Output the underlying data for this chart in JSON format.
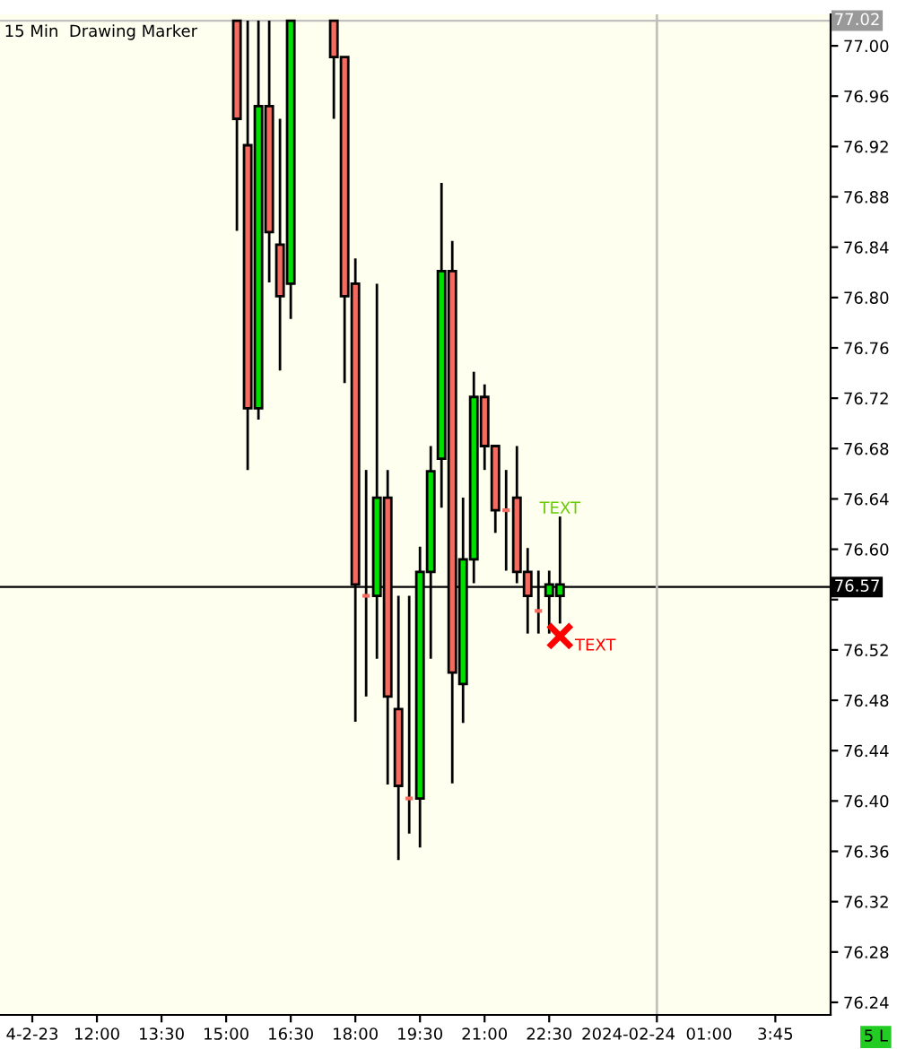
{
  "chart_data": {
    "type": "candlestick",
    "title": "15 Min  Drawing Marker",
    "x": [
      "2024-02-23T15:15",
      "2024-02-23T15:30",
      "2024-02-23T15:45",
      "2024-02-23T16:00",
      "2024-02-23T16:15",
      "2024-02-23T16:30",
      "2024-02-23T17:30",
      "2024-02-23T17:45",
      "2024-02-23T18:00",
      "2024-02-23T18:15",
      "2024-02-23T18:30",
      "2024-02-23T18:45",
      "2024-02-23T19:00",
      "2024-02-23T19:15",
      "2024-02-23T19:30",
      "2024-02-23T19:45",
      "2024-02-23T20:00",
      "2024-02-23T20:15",
      "2024-02-23T20:30",
      "2024-02-23T20:45",
      "2024-02-23T21:00",
      "2024-02-23T21:15",
      "2024-02-23T21:30",
      "2024-02-23T21:45",
      "2024-02-23T22:00",
      "2024-02-23T22:15",
      "2024-02-23T22:30",
      "2024-02-23T22:45"
    ],
    "ohlc": [
      [
        77.02,
        77.02,
        76.853,
        76.942
      ],
      [
        76.921,
        77.02,
        76.663,
        76.712
      ],
      [
        76.712,
        77.02,
        76.703,
        76.952
      ],
      [
        76.952,
        77.02,
        76.812,
        76.852
      ],
      [
        76.842,
        76.942,
        76.742,
        76.801
      ],
      [
        76.811,
        77.02,
        76.783,
        77.02
      ],
      [
        77.02,
        77.02,
        76.942,
        76.991
      ],
      [
        76.991,
        76.991,
        76.732,
        76.801
      ],
      [
        76.811,
        76.831,
        76.463,
        76.572
      ],
      [
        76.563,
        76.663,
        76.483,
        76.563
      ],
      [
        76.563,
        76.811,
        76.513,
        76.641
      ],
      [
        76.641,
        76.663,
        76.413,
        76.483
      ],
      [
        76.473,
        76.563,
        76.353,
        76.412
      ],
      [
        76.402,
        76.563,
        76.374,
        76.402
      ],
      [
        76.402,
        76.602,
        76.363,
        76.582
      ],
      [
        76.582,
        76.682,
        76.513,
        76.662
      ],
      [
        76.672,
        76.891,
        76.633,
        76.821
      ],
      [
        76.821,
        76.845,
        76.414,
        76.502
      ],
      [
        76.493,
        76.641,
        76.462,
        76.592
      ],
      [
        76.592,
        76.741,
        76.573,
        76.721
      ],
      [
        76.721,
        76.731,
        76.663,
        76.682
      ],
      [
        76.682,
        76.682,
        76.613,
        76.631
      ],
      [
        76.631,
        76.663,
        76.583,
        76.631
      ],
      [
        76.641,
        76.682,
        76.573,
        76.582
      ],
      [
        76.582,
        76.601,
        76.533,
        76.563
      ],
      [
        76.551,
        76.583,
        76.533,
        76.551
      ],
      [
        76.563,
        76.583,
        76.533,
        76.572
      ],
      [
        76.563,
        76.626,
        76.541,
        76.572
      ]
    ],
    "colors": [
      "#f46b60",
      "#f46b60",
      "#00e000",
      "#f46b60",
      "#f46b60",
      "#00e000",
      "#f46b60",
      "#f46b60",
      "#f46b60",
      "#f46b60",
      "#00e000",
      "#f46b60",
      "#f46b60",
      "#f46b60",
      "#00e000",
      "#00e000",
      "#00e000",
      "#f46b60",
      "#00e000",
      "#00e000",
      "#f46b60",
      "#f46b60",
      "#f46b60",
      "#f46b60",
      "#f46b60",
      "#f46b60",
      "#00e000",
      "#00e000"
    ],
    "series": [
      {
        "type": "scatter",
        "name": "TEXT",
        "x": [
          "2024-02-23T22:45"
        ],
        "values": [
          76.531
        ],
        "color": "#ff0000",
        "marker": "cross"
      }
    ],
    "annotations": [
      {
        "text": "TEXT",
        "x": "2024-02-23T22:45",
        "y": 76.632
      },
      "5 L"
    ],
    "ref_lines": [
      {
        "axis": "y",
        "value": 77.02,
        "label": "77.02",
        "color": "#c0c0c0"
      },
      {
        "axis": "y",
        "value": 76.57,
        "label": "76.57",
        "color": "#000000"
      },
      {
        "axis": "x",
        "value": "2024-02-24T01:00",
        "color": "#c0c0c0"
      }
    ],
    "xlim": [
      "2024-02-23T09:45",
      "2024-02-24T05:02"
    ],
    "ylim": [
      76.23,
      77.025
    ],
    "xticks": [
      {
        "value": "2024-02-23T10:30",
        "label": "4-2-23"
      },
      {
        "value": "2024-02-23T12:00",
        "label": "12:00"
      },
      {
        "value": "2024-02-23T13:30",
        "label": "13:30"
      },
      {
        "value": "2024-02-23T15:00",
        "label": "15:00"
      },
      {
        "value": "2024-02-23T16:30",
        "label": "16:30"
      },
      {
        "value": "2024-02-23T18:00",
        "label": "18:00"
      },
      {
        "value": "2024-02-23T19:30",
        "label": "19:30"
      },
      {
        "value": "2024-02-23T21:00",
        "label": "21:00"
      },
      {
        "value": "2024-02-23T22:30",
        "label": "22:30"
      },
      {
        "value": "2024-02-24T01:00",
        "label": "2024-02-24  01:00"
      },
      {
        "value": "2024-02-24T03:45",
        "label": "3:45"
      }
    ],
    "yticks": [
      76.24,
      76.28,
      76.32,
      76.36,
      {
        "value": 76.4,
        "label": "76.40"
      },
      76.44,
      76.48,
      76.52,
      {
        "value": 76.56,
        "label": null
      },
      {
        "value": 76.6,
        "label": "76.60"
      },
      76.64,
      76.68,
      76.72,
      76.76,
      {
        "value": 76.8,
        "label": "76.80"
      },
      76.84,
      76.88,
      76.92,
      76.96,
      {
        "value": 77.0,
        "label": "77.00"
      }
    ],
    "grid": false
  }
}
